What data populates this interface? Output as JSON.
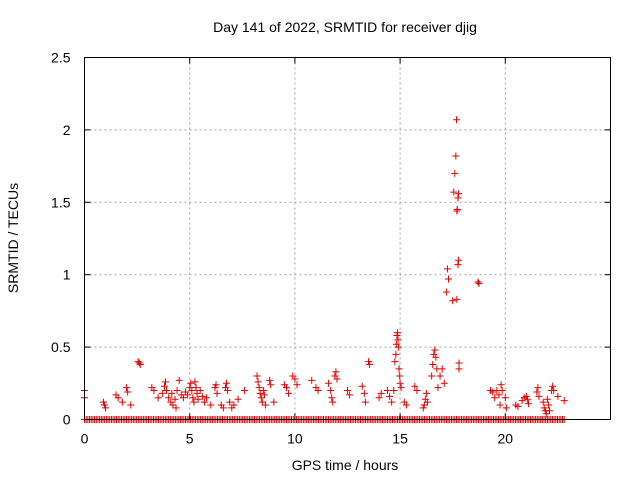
{
  "chart_data": {
    "type": "scatter",
    "title": "Day 141 of 2022, SRMTID for receiver djig",
    "xlabel": "GPS time / hours",
    "ylabel": "SRMTID / TECUs",
    "xlim": [
      0,
      25
    ],
    "ylim": [
      0,
      2.5
    ],
    "xticks": [
      0,
      5,
      10,
      15,
      20
    ],
    "xtick_labels": [
      "0",
      "5",
      "10",
      "15",
      "20"
    ],
    "yticks": [
      0,
      0.5,
      1,
      1.5,
      2,
      2.5
    ],
    "ytick_labels": [
      "0",
      "0.5",
      "1",
      "1.5",
      "2",
      "2.5"
    ],
    "grid": true,
    "marker": "+",
    "color": "#e00000",
    "baseline": {
      "y": 0,
      "x_start": 0,
      "x_end": 22.8,
      "step": 0.08
    },
    "points": [
      [
        0.0,
        0.2
      ],
      [
        0.0,
        0.15
      ],
      [
        0.9,
        0.12
      ],
      [
        0.95,
        0.1
      ],
      [
        1.0,
        0.08
      ],
      [
        1.5,
        0.17
      ],
      [
        1.6,
        0.15
      ],
      [
        1.8,
        0.12
      ],
      [
        2.0,
        0.22
      ],
      [
        2.05,
        0.19
      ],
      [
        2.2,
        0.1
      ],
      [
        2.55,
        0.4
      ],
      [
        2.6,
        0.39
      ],
      [
        2.65,
        0.38
      ],
      [
        3.2,
        0.22
      ],
      [
        3.3,
        0.2
      ],
      [
        3.5,
        0.15
      ],
      [
        3.7,
        0.18
      ],
      [
        3.8,
        0.23
      ],
      [
        3.85,
        0.26
      ],
      [
        3.9,
        0.2
      ],
      [
        4.0,
        0.15
      ],
      [
        4.1,
        0.12
      ],
      [
        4.15,
        0.18
      ],
      [
        4.2,
        0.1
      ],
      [
        4.3,
        0.14
      ],
      [
        4.35,
        0.08
      ],
      [
        4.4,
        0.2
      ],
      [
        4.5,
        0.27
      ],
      [
        4.6,
        0.17
      ],
      [
        4.7,
        0.15
      ],
      [
        4.8,
        0.19
      ],
      [
        4.9,
        0.17
      ],
      [
        5.0,
        0.22
      ],
      [
        5.05,
        0.25
      ],
      [
        5.1,
        0.2
      ],
      [
        5.15,
        0.15
      ],
      [
        5.2,
        0.12
      ],
      [
        5.25,
        0.26
      ],
      [
        5.3,
        0.22
      ],
      [
        5.35,
        0.18
      ],
      [
        5.4,
        0.14
      ],
      [
        5.5,
        0.2
      ],
      [
        5.6,
        0.16
      ],
      [
        5.7,
        0.12
      ],
      [
        5.8,
        0.15
      ],
      [
        6.0,
        0.1
      ],
      [
        6.2,
        0.22
      ],
      [
        6.25,
        0.24
      ],
      [
        6.3,
        0.18
      ],
      [
        6.5,
        0.1
      ],
      [
        6.6,
        0.08
      ],
      [
        6.7,
        0.22
      ],
      [
        6.75,
        0.25
      ],
      [
        6.8,
        0.2
      ],
      [
        6.9,
        0.12
      ],
      [
        7.0,
        0.08
      ],
      [
        7.1,
        0.1
      ],
      [
        7.3,
        0.14
      ],
      [
        7.6,
        0.2
      ],
      [
        8.2,
        0.3
      ],
      [
        8.25,
        0.26
      ],
      [
        8.3,
        0.22
      ],
      [
        8.35,
        0.18
      ],
      [
        8.4,
        0.15
      ],
      [
        8.45,
        0.12
      ],
      [
        8.5,
        0.2
      ],
      [
        8.55,
        0.17
      ],
      [
        8.6,
        0.1
      ],
      [
        8.8,
        0.27
      ],
      [
        8.85,
        0.24
      ],
      [
        9.0,
        0.12
      ],
      [
        9.5,
        0.24
      ],
      [
        9.6,
        0.22
      ],
      [
        9.7,
        0.18
      ],
      [
        9.9,
        0.3
      ],
      [
        10.0,
        0.28
      ],
      [
        10.1,
        0.24
      ],
      [
        10.8,
        0.27
      ],
      [
        11.0,
        0.22
      ],
      [
        11.1,
        0.2
      ],
      [
        11.6,
        0.25
      ],
      [
        11.7,
        0.2
      ],
      [
        11.75,
        0.15
      ],
      [
        11.8,
        0.12
      ],
      [
        11.9,
        0.3
      ],
      [
        11.95,
        0.33
      ],
      [
        12.0,
        0.28
      ],
      [
        12.5,
        0.2
      ],
      [
        12.6,
        0.17
      ],
      [
        13.2,
        0.23
      ],
      [
        13.3,
        0.18
      ],
      [
        13.35,
        0.12
      ],
      [
        13.5,
        0.4
      ],
      [
        13.55,
        0.38
      ],
      [
        14.0,
        0.15
      ],
      [
        14.1,
        0.18
      ],
      [
        14.4,
        0.2
      ],
      [
        14.5,
        0.16
      ],
      [
        14.6,
        0.12
      ],
      [
        14.75,
        0.4
      ],
      [
        14.8,
        0.45
      ],
      [
        14.82,
        0.52
      ],
      [
        14.85,
        0.58
      ],
      [
        14.88,
        0.6
      ],
      [
        14.9,
        0.55
      ],
      [
        14.92,
        0.5
      ],
      [
        14.95,
        0.35
      ],
      [
        14.98,
        0.3
      ],
      [
        15.0,
        0.25
      ],
      [
        15.05,
        0.22
      ],
      [
        14.7,
        0.2
      ],
      [
        15.2,
        0.12
      ],
      [
        15.3,
        0.1
      ],
      [
        15.7,
        0.23
      ],
      [
        15.8,
        0.2
      ],
      [
        16.1,
        0.08
      ],
      [
        16.15,
        0.1
      ],
      [
        16.2,
        0.14
      ],
      [
        16.25,
        0.18
      ],
      [
        16.3,
        0.12
      ],
      [
        16.5,
        0.3
      ],
      [
        16.55,
        0.38
      ],
      [
        16.6,
        0.45
      ],
      [
        16.65,
        0.48
      ],
      [
        16.7,
        0.43
      ],
      [
        16.75,
        0.35
      ],
      [
        16.8,
        0.22
      ],
      [
        16.9,
        0.3
      ],
      [
        17.0,
        0.35
      ],
      [
        17.1,
        0.25
      ],
      [
        17.2,
        0.88
      ],
      [
        17.25,
        1.04
      ],
      [
        17.3,
        0.97
      ],
      [
        17.5,
        0.82
      ],
      [
        17.55,
        1.57
      ],
      [
        17.6,
        1.7
      ],
      [
        17.65,
        1.82
      ],
      [
        17.68,
        2.07
      ],
      [
        17.7,
        1.44
      ],
      [
        17.72,
        1.45
      ],
      [
        17.75,
        1.53
      ],
      [
        17.78,
        1.56
      ],
      [
        17.7,
        0.83
      ],
      [
        17.75,
        1.07
      ],
      [
        17.78,
        1.1
      ],
      [
        17.8,
        0.35
      ],
      [
        17.8,
        0.39
      ],
      [
        18.7,
        0.95
      ],
      [
        18.75,
        0.94
      ],
      [
        19.3,
        0.2
      ],
      [
        19.4,
        0.19
      ],
      [
        19.5,
        0.15
      ],
      [
        19.6,
        0.2
      ],
      [
        19.7,
        0.17
      ],
      [
        19.75,
        0.1
      ],
      [
        19.8,
        0.24
      ],
      [
        19.85,
        0.2
      ],
      [
        20.0,
        0.15
      ],
      [
        20.05,
        0.08
      ],
      [
        20.5,
        0.1
      ],
      [
        20.6,
        0.09
      ],
      [
        20.8,
        0.13
      ],
      [
        20.9,
        0.15
      ],
      [
        21.0,
        0.16
      ],
      [
        21.05,
        0.14
      ],
      [
        21.1,
        0.11
      ],
      [
        21.5,
        0.19
      ],
      [
        21.55,
        0.22
      ],
      [
        21.6,
        0.16
      ],
      [
        21.8,
        0.12
      ],
      [
        21.85,
        0.08
      ],
      [
        21.9,
        0.06
      ],
      [
        21.95,
        0.04
      ],
      [
        22.0,
        0.14
      ],
      [
        22.05,
        0.1
      ],
      [
        22.1,
        0.06
      ],
      [
        22.2,
        0.2
      ],
      [
        22.25,
        0.23
      ],
      [
        22.3,
        0.2
      ],
      [
        22.5,
        0.16
      ],
      [
        22.8,
        0.13
      ]
    ]
  }
}
